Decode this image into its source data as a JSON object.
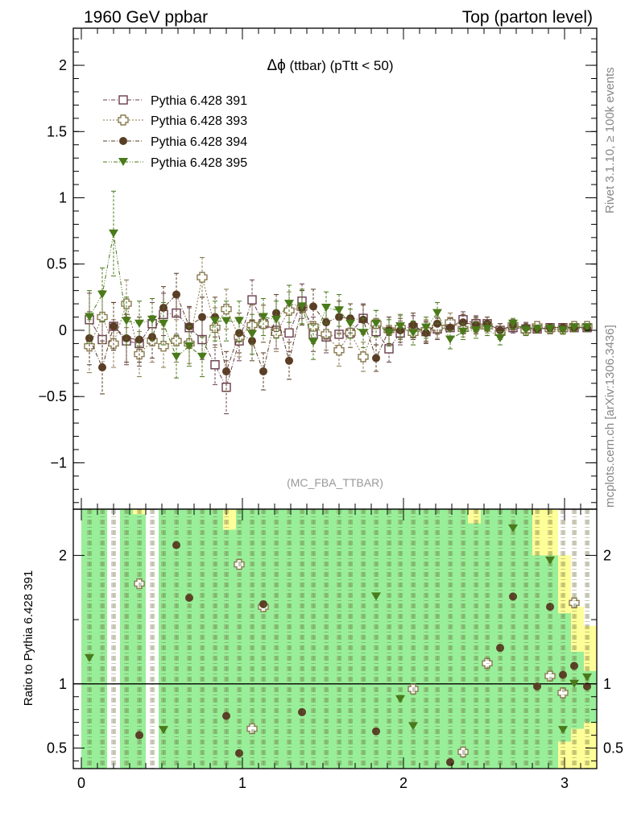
{
  "header": {
    "left": "1960 GeV ppbar",
    "right": "Top (parton level)"
  },
  "side_labels": {
    "rivet": "Rivet 3.1.10, ≥ 100k events",
    "mcplots": "mcplots.cern.ch [arXiv:1306.3436]"
  },
  "chart_data": [
    {
      "type": "scatter",
      "title_symbol": "Δϕ",
      "title_rest": " (ttbar) (pTtt < 50)",
      "watermark": "(MC_FBA_TTBAR)",
      "xlim": [
        -0.05,
        3.2
      ],
      "ylim": [
        -1.35,
        2.28
      ],
      "y_ticks": [
        -1,
        -0.5,
        0,
        0.5,
        1,
        1.5,
        2
      ],
      "y_tick_labels": [
        "−1",
        "−0.5",
        "0",
        "0.5",
        "1",
        "1.5",
        "2"
      ],
      "x": [
        0.05,
        0.13,
        0.2,
        0.28,
        0.36,
        0.44,
        0.51,
        0.59,
        0.67,
        0.75,
        0.83,
        0.9,
        0.98,
        1.06,
        1.13,
        1.21,
        1.29,
        1.37,
        1.44,
        1.52,
        1.6,
        1.67,
        1.75,
        1.83,
        1.91,
        1.98,
        2.06,
        2.14,
        2.21,
        2.29,
        2.37,
        2.45,
        2.52,
        2.6,
        2.68,
        2.76,
        2.83,
        2.91,
        2.99,
        3.06,
        3.14
      ],
      "series": [
        {
          "name": "Pythia 6.428 391",
          "color": "#6a3d4e",
          "marker": "open-square",
          "values": [
            0.08,
            -0.07,
            0.03,
            -0.08,
            -0.1,
            0.05,
            0.12,
            0.13,
            0.02,
            -0.07,
            -0.26,
            -0.43,
            -0.08,
            0.23,
            0.05,
            0.0,
            -0.02,
            0.22,
            -0.03,
            -0.05,
            -0.03,
            -0.02,
            0.09,
            -0.01,
            -0.14,
            -0.02,
            0.02,
            -0.01,
            0.01,
            0.02,
            0.08,
            0.05,
            0.05,
            0.0,
            0.02,
            0.01,
            0.01,
            0.02,
            0.02,
            0.02,
            0.02
          ],
          "errors": [
            0.2,
            0.2,
            0.18,
            0.18,
            0.17,
            0.16,
            0.16,
            0.16,
            0.15,
            0.15,
            0.15,
            0.2,
            0.15,
            0.15,
            0.14,
            0.14,
            0.14,
            0.13,
            0.13,
            0.12,
            0.12,
            0.11,
            0.11,
            0.1,
            0.1,
            0.09,
            0.09,
            0.08,
            0.08,
            0.07,
            0.06,
            0.06,
            0.05,
            0.05,
            0.04,
            0.04,
            0.03,
            0.03,
            0.03,
            0.03,
            0.03
          ]
        },
        {
          "name": "Pythia 6.428 393",
          "color": "#8a7a50",
          "marker": "open-cross",
          "values": [
            -0.12,
            0.1,
            -0.1,
            0.2,
            -0.18,
            -0.08,
            -0.12,
            -0.08,
            -0.1,
            0.4,
            0.02,
            0.16,
            -0.05,
            0.04,
            0.05,
            -0.02,
            0.15,
            0.17,
            0.03,
            -0.03,
            -0.15,
            -0.02,
            -0.2,
            0.05,
            0.0,
            0.02,
            -0.02,
            0.0,
            0.02,
            0.06,
            0.01,
            0.03,
            0.03,
            -0.02,
            0.04,
            0.0,
            0.03,
            0.01,
            0.01,
            0.03,
            0.03
          ],
          "errors": [
            0.2,
            0.2,
            0.18,
            0.18,
            0.17,
            0.16,
            0.16,
            0.16,
            0.15,
            0.15,
            0.15,
            0.15,
            0.15,
            0.15,
            0.14,
            0.14,
            0.14,
            0.13,
            0.13,
            0.12,
            0.12,
            0.11,
            0.11,
            0.1,
            0.1,
            0.09,
            0.09,
            0.08,
            0.08,
            0.07,
            0.06,
            0.06,
            0.05,
            0.05,
            0.04,
            0.04,
            0.03,
            0.03,
            0.03,
            0.03,
            0.03
          ]
        },
        {
          "name": "Pythia 6.428 394",
          "color": "#5a3e26",
          "marker": "filled-circle",
          "values": [
            -0.06,
            -0.28,
            0.03,
            -0.06,
            -0.07,
            -0.05,
            0.17,
            0.27,
            0.03,
            0.1,
            0.1,
            -0.31,
            -0.02,
            -0.08,
            -0.31,
            0.13,
            -0.23,
            0.17,
            0.18,
            0.06,
            0.1,
            0.09,
            0.08,
            -0.21,
            0.0,
            0.0,
            0.04,
            -0.02,
            0.05,
            0.02,
            0.06,
            0.04,
            0.05,
            0.0,
            0.04,
            0.02,
            0.01,
            0.02,
            0.02,
            0.02,
            0.02
          ],
          "errors": [
            0.2,
            0.2,
            0.18,
            0.18,
            0.17,
            0.16,
            0.16,
            0.16,
            0.15,
            0.15,
            0.15,
            0.15,
            0.15,
            0.15,
            0.14,
            0.14,
            0.14,
            0.13,
            0.13,
            0.12,
            0.12,
            0.11,
            0.11,
            0.1,
            0.1,
            0.09,
            0.09,
            0.08,
            0.08,
            0.07,
            0.06,
            0.06,
            0.05,
            0.05,
            0.04,
            0.04,
            0.03,
            0.03,
            0.03,
            0.03,
            0.03
          ]
        },
        {
          "name": "Pythia 6.428 395",
          "color": "#4a7a1a",
          "marker": "filled-triangle-down",
          "values": [
            0.1,
            0.27,
            0.73,
            0.07,
            0.05,
            0.08,
            0.05,
            -0.2,
            -0.12,
            -0.2,
            0.07,
            0.07,
            0.07,
            -0.03,
            0.1,
            0.08,
            0.2,
            0.18,
            -0.09,
            0.17,
            0.15,
            0.05,
            -0.02,
            0.05,
            -0.02,
            0.03,
            -0.02,
            0.02,
            0.13,
            -0.07,
            -0.01,
            0.0,
            0.01,
            -0.06,
            0.05,
            0.0,
            0.01,
            0.01,
            0.0,
            0.02,
            0.02
          ],
          "errors": [
            0.2,
            0.2,
            0.32,
            0.18,
            0.17,
            0.16,
            0.16,
            0.16,
            0.15,
            0.15,
            0.15,
            0.15,
            0.15,
            0.15,
            0.14,
            0.14,
            0.14,
            0.13,
            0.13,
            0.12,
            0.12,
            0.11,
            0.11,
            0.1,
            0.1,
            0.09,
            0.09,
            0.08,
            0.08,
            0.07,
            0.06,
            0.06,
            0.05,
            0.05,
            0.04,
            0.04,
            0.03,
            0.03,
            0.03,
            0.03,
            0.03
          ]
        }
      ],
      "legend_position": "top-left"
    },
    {
      "type": "scatter",
      "ylabel": "Ratio to Pythia 6.428 391",
      "xlim": [
        -0.05,
        3.2
      ],
      "ylim": [
        0.34,
        2.36
      ],
      "x_ticks": [
        0,
        1,
        2,
        3
      ],
      "x_tick_labels": [
        "0",
        "1",
        "2",
        "3"
      ],
      "y_ticks": [
        0.5,
        1,
        2
      ],
      "y_tick_labels": [
        "0.5",
        "1",
        "2"
      ],
      "reference_line": 1,
      "band": {
        "x": [
          0.0,
          0.08,
          0.16,
          0.24,
          0.32,
          0.4,
          0.48,
          0.56,
          0.64,
          0.72,
          0.8,
          0.88,
          0.96,
          1.04,
          1.12,
          1.2,
          1.28,
          1.36,
          1.44,
          1.52,
          1.6,
          1.68,
          1.76,
          1.84,
          1.92,
          2.0,
          2.08,
          2.16,
          2.24,
          2.32,
          2.4,
          2.48,
          2.56,
          2.64,
          2.72,
          2.8,
          2.88,
          2.96,
          3.04,
          3.12
        ],
        "width": 0.08,
        "green_low": [
          0.34,
          0.34,
          0.34,
          0.34,
          0.34,
          0.34,
          0.34,
          0.34,
          0.34,
          0.34,
          0.34,
          0.34,
          0.34,
          0.34,
          0.34,
          0.34,
          0.34,
          0.34,
          0.34,
          0.34,
          0.34,
          0.34,
          0.34,
          0.34,
          0.34,
          0.34,
          0.34,
          0.34,
          0.34,
          0.34,
          0.34,
          0.34,
          0.34,
          0.34,
          0.34,
          0.34,
          0.34,
          0.55,
          0.65,
          0.7
        ],
        "green_high": [
          2.36,
          2.36,
          0,
          2.36,
          2.32,
          0,
          2.36,
          2.36,
          2.36,
          2.36,
          2.36,
          2.2,
          2.36,
          2.36,
          2.36,
          2.36,
          2.36,
          2.36,
          2.36,
          2.36,
          2.36,
          2.36,
          2.36,
          2.36,
          2.36,
          2.36,
          2.36,
          2.36,
          2.36,
          2.36,
          2.25,
          2.36,
          2.36,
          2.36,
          2.36,
          2.0,
          2.0,
          1.55,
          1.25,
          1.1
        ],
        "yellow_low": [
          0.34,
          0.34,
          0.34,
          0.34,
          0.34,
          0.34,
          0.34,
          0.34,
          0.34,
          0.34,
          0.34,
          0.34,
          0.34,
          0.34,
          0.34,
          0.34,
          0.34,
          0.34,
          0.34,
          0.34,
          0.34,
          0.34,
          0.34,
          0.34,
          0.34,
          0.34,
          0.34,
          0.34,
          0.34,
          0.34,
          0.34,
          0.34,
          0.34,
          0.34,
          0.34,
          0.34,
          0.34,
          0.34,
          0.34,
          0.34
        ],
        "yellow_high": [
          2.36,
          2.36,
          0,
          2.36,
          2.36,
          0,
          2.36,
          2.36,
          2.36,
          2.36,
          2.36,
          2.36,
          2.36,
          2.36,
          2.36,
          2.36,
          2.36,
          2.36,
          2.36,
          2.36,
          2.36,
          2.36,
          2.36,
          2.36,
          2.36,
          2.36,
          2.36,
          2.36,
          2.36,
          2.36,
          2.36,
          2.36,
          2.36,
          2.36,
          2.36,
          2.36,
          2.36,
          2.0,
          1.6,
          1.45
        ]
      },
      "series": [
        {
          "name": "Pythia 6.428 393",
          "color": "#8a7a50",
          "marker": "open-cross",
          "points": [
            [
              0.36,
              1.78
            ],
            [
              0.98,
              1.93
            ],
            [
              1.06,
              0.65
            ],
            [
              1.13,
              1.6
            ],
            [
              2.06,
              0.96
            ],
            [
              2.37,
              0.47
            ],
            [
              2.52,
              1.16
            ],
            [
              2.91,
              1.06
            ],
            [
              2.99,
              0.93
            ],
            [
              3.06,
              1.63
            ]
          ]
        },
        {
          "name": "Pythia 6.428 394",
          "color": "#5a3e26",
          "marker": "filled-circle",
          "points": [
            [
              0.36,
              0.6
            ],
            [
              0.59,
              2.08
            ],
            [
              0.67,
              1.67
            ],
            [
              0.9,
              0.75
            ],
            [
              0.98,
              0.46
            ],
            [
              1.13,
              1.62
            ],
            [
              1.37,
              0.78
            ],
            [
              1.83,
              0.63
            ],
            [
              2.29,
              0.39
            ],
            [
              2.6,
              1.28
            ],
            [
              2.68,
              1.68
            ],
            [
              2.83,
              0.98
            ],
            [
              2.91,
              1.6
            ],
            [
              2.99,
              1.07
            ],
            [
              3.06,
              1.14
            ],
            [
              3.14,
              0.98
            ]
          ]
        },
        {
          "name": "Pythia 6.428 395",
          "color": "#4a7a1a",
          "marker": "filled-triangle-down",
          "points": [
            [
              0.05,
              1.2
            ],
            [
              0.51,
              0.64
            ],
            [
              1.83,
              1.68
            ],
            [
              1.98,
              0.88
            ],
            [
              2.06,
              0.67
            ],
            [
              2.68,
              2.21
            ],
            [
              2.91,
              1.96
            ],
            [
              2.99,
              0.64
            ],
            [
              3.06,
              1.0
            ],
            [
              3.14,
              1.05
            ]
          ]
        }
      ]
    }
  ]
}
